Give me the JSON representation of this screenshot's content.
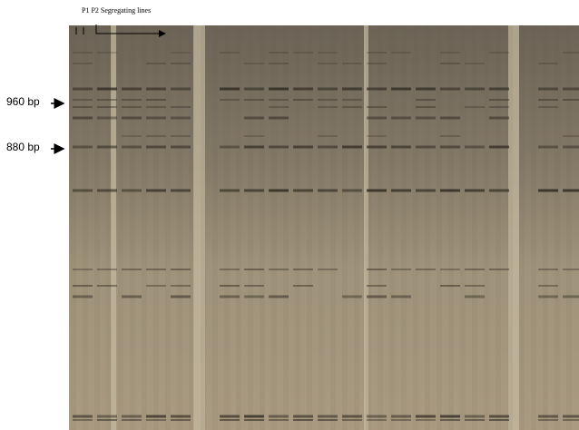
{
  "header": {
    "lanes_label": "P1 P2 Segregating lines"
  },
  "markers": [
    {
      "label": "960 bp"
    },
    {
      "label": "880 bp"
    }
  ]
}
